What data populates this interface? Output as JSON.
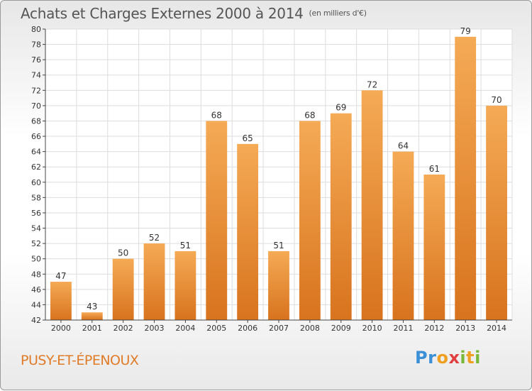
{
  "header": {
    "title": "Achats et Charges Externes 2000 à 2014",
    "unit": "(en milliers d'€)"
  },
  "footer": {
    "commune": "PUSY-ET-ÉPENOUX",
    "logo": "Proxiti"
  },
  "colors": {
    "bar_top": "#f5aa55",
    "bar_bottom": "#d8731e",
    "grid": "#dddddd",
    "axis": "#444444",
    "commune_text": "#e07b28"
  },
  "chart_data": {
    "type": "bar",
    "title": "Achats et Charges Externes 2000 à 2014",
    "subtitle": "(en milliers d'€)",
    "categories": [
      "2000",
      "2001",
      "2002",
      "2003",
      "2004",
      "2005",
      "2006",
      "2007",
      "2008",
      "2009",
      "2010",
      "2011",
      "2012",
      "2013",
      "2014"
    ],
    "values": [
      47,
      43,
      50,
      52,
      51,
      68,
      65,
      51,
      68,
      69,
      72,
      64,
      61,
      79,
      70
    ],
    "ylim": [
      42,
      80
    ],
    "yticks": [
      42,
      44,
      46,
      48,
      50,
      52,
      54,
      56,
      58,
      60,
      62,
      64,
      66,
      68,
      70,
      72,
      74,
      76,
      78,
      80
    ],
    "grid": true,
    "data_labels": true
  }
}
